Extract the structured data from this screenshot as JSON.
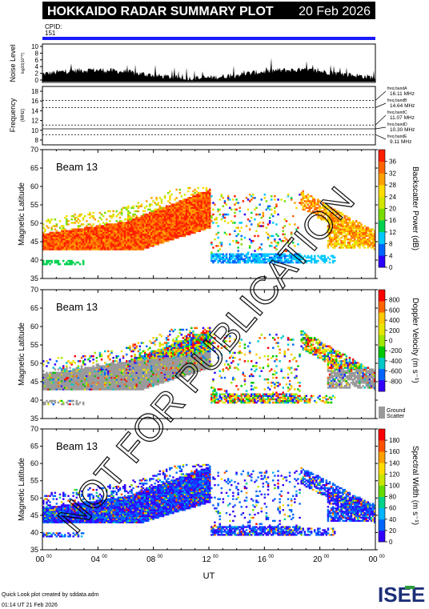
{
  "header": {
    "title": "HOKKAIDO RADAR SUMMARY PLOT",
    "date": "20 Feb 2026",
    "cpid_label": "CPID:",
    "cpid_value": "151"
  },
  "colors": {
    "title_bar": "#000000",
    "cpid_bar": "#1a1aff",
    "ground_scatter": "#9a9a9a",
    "watermark": "#000000"
  },
  "noise_panel": {
    "ylabel": "Noise Level",
    "ylabel_sub": "log10(10^?)",
    "ticks": [
      "10",
      "8",
      "6",
      "4",
      "2",
      "0"
    ]
  },
  "freq_panel": {
    "ylabel": "Frequency",
    "ylabel_sub": "(MHz)",
    "ticks": [
      "18",
      "16",
      "14",
      "12",
      "10",
      "8"
    ],
    "bands": [
      {
        "label": "freq bandA",
        "value": "16.11 MHz"
      },
      {
        "label": "freq bandB",
        "value": "14.64 MHz"
      },
      {
        "label": "freq bandC",
        "value": "11.07 MHz"
      },
      {
        "label": "freq bandD",
        "value": "10.30 MHz"
      },
      {
        "label": "freq bandE",
        "value": "9.11 MHz"
      }
    ]
  },
  "chart_data": [
    {
      "type": "heatmap",
      "panel": "backscatter_power",
      "beam_label": "Beam 13",
      "ylabel": "Magnetic Latitude",
      "ylim": [
        35,
        70
      ],
      "yticks": [
        "70",
        "65",
        "60",
        "55",
        "50",
        "45",
        "40",
        "35"
      ],
      "colorbar_label": "Backscatter Power (dB)",
      "colorbar_ticks": [
        "36",
        "32",
        "28",
        "24",
        "20",
        "16",
        "12",
        "8",
        "4",
        "0"
      ],
      "colorbar_range": [
        0,
        40
      ],
      "colors": [
        "#2a00ff",
        "#0064ff",
        "#00c8ff",
        "#00d250",
        "#78dc00",
        "#d2e600",
        "#ffdc00",
        "#ffa000",
        "#ff6400",
        "#ff1e00"
      ]
    },
    {
      "type": "heatmap",
      "panel": "doppler_velocity",
      "beam_label": "Beam 13",
      "ylabel": "Magnetic Latitude",
      "ylim": [
        35,
        70
      ],
      "yticks": [
        "70",
        "65",
        "60",
        "55",
        "50",
        "45",
        "40",
        "35"
      ],
      "colorbar_label": "Doppler Velocity (m s⁻¹)",
      "colorbar_ticks": [
        "800",
        "600",
        "400",
        "200",
        "0",
        "-200",
        "-400",
        "-600",
        "-800"
      ],
      "colorbar_range": [
        -1000,
        1000
      ],
      "ground_scatter_label": "Ground Scatter",
      "colors": [
        "#ff0000",
        "#ff6400",
        "#ffc800",
        "#e6e600",
        "#a0e600",
        "#00c800",
        "#00c8c8",
        "#0064ff",
        "#3200ff"
      ]
    },
    {
      "type": "heatmap",
      "panel": "spectral_width",
      "beam_label": "Beam 13",
      "ylabel": "Magnetic Latitude",
      "ylim": [
        35,
        70
      ],
      "yticks": [
        "70",
        "65",
        "60",
        "55",
        "50",
        "45",
        "40",
        "35"
      ],
      "colorbar_label": "Spectral Width (m s⁻¹)",
      "colorbar_ticks": [
        "180",
        "160",
        "140",
        "120",
        "100",
        "80",
        "60",
        "40",
        "20",
        "0"
      ],
      "colorbar_range": [
        0,
        200
      ],
      "xlabel": "UT",
      "xticks": [
        {
          "h": "00",
          "m": "00"
        },
        {
          "h": "04",
          "m": "00"
        },
        {
          "h": "08",
          "m": "00"
        },
        {
          "h": "12",
          "m": "00"
        },
        {
          "h": "16",
          "m": "00"
        },
        {
          "h": "20",
          "m": "00"
        },
        {
          "h": "00",
          "m": "00"
        }
      ],
      "colors": [
        "#3200ff",
        "#0064ff",
        "#00b4ff",
        "#00d28c",
        "#64dc00",
        "#c8e600",
        "#ffdc00",
        "#ffa000",
        "#ff5000",
        "#ff0000"
      ]
    }
  ],
  "footer": {
    "line1": "Quick Look plot created by sddata.adm",
    "line2": "01:14 UT 21 Feb 2026",
    "logo_text": "ISEE"
  },
  "watermark": "NOT FOR PUBLICATION"
}
